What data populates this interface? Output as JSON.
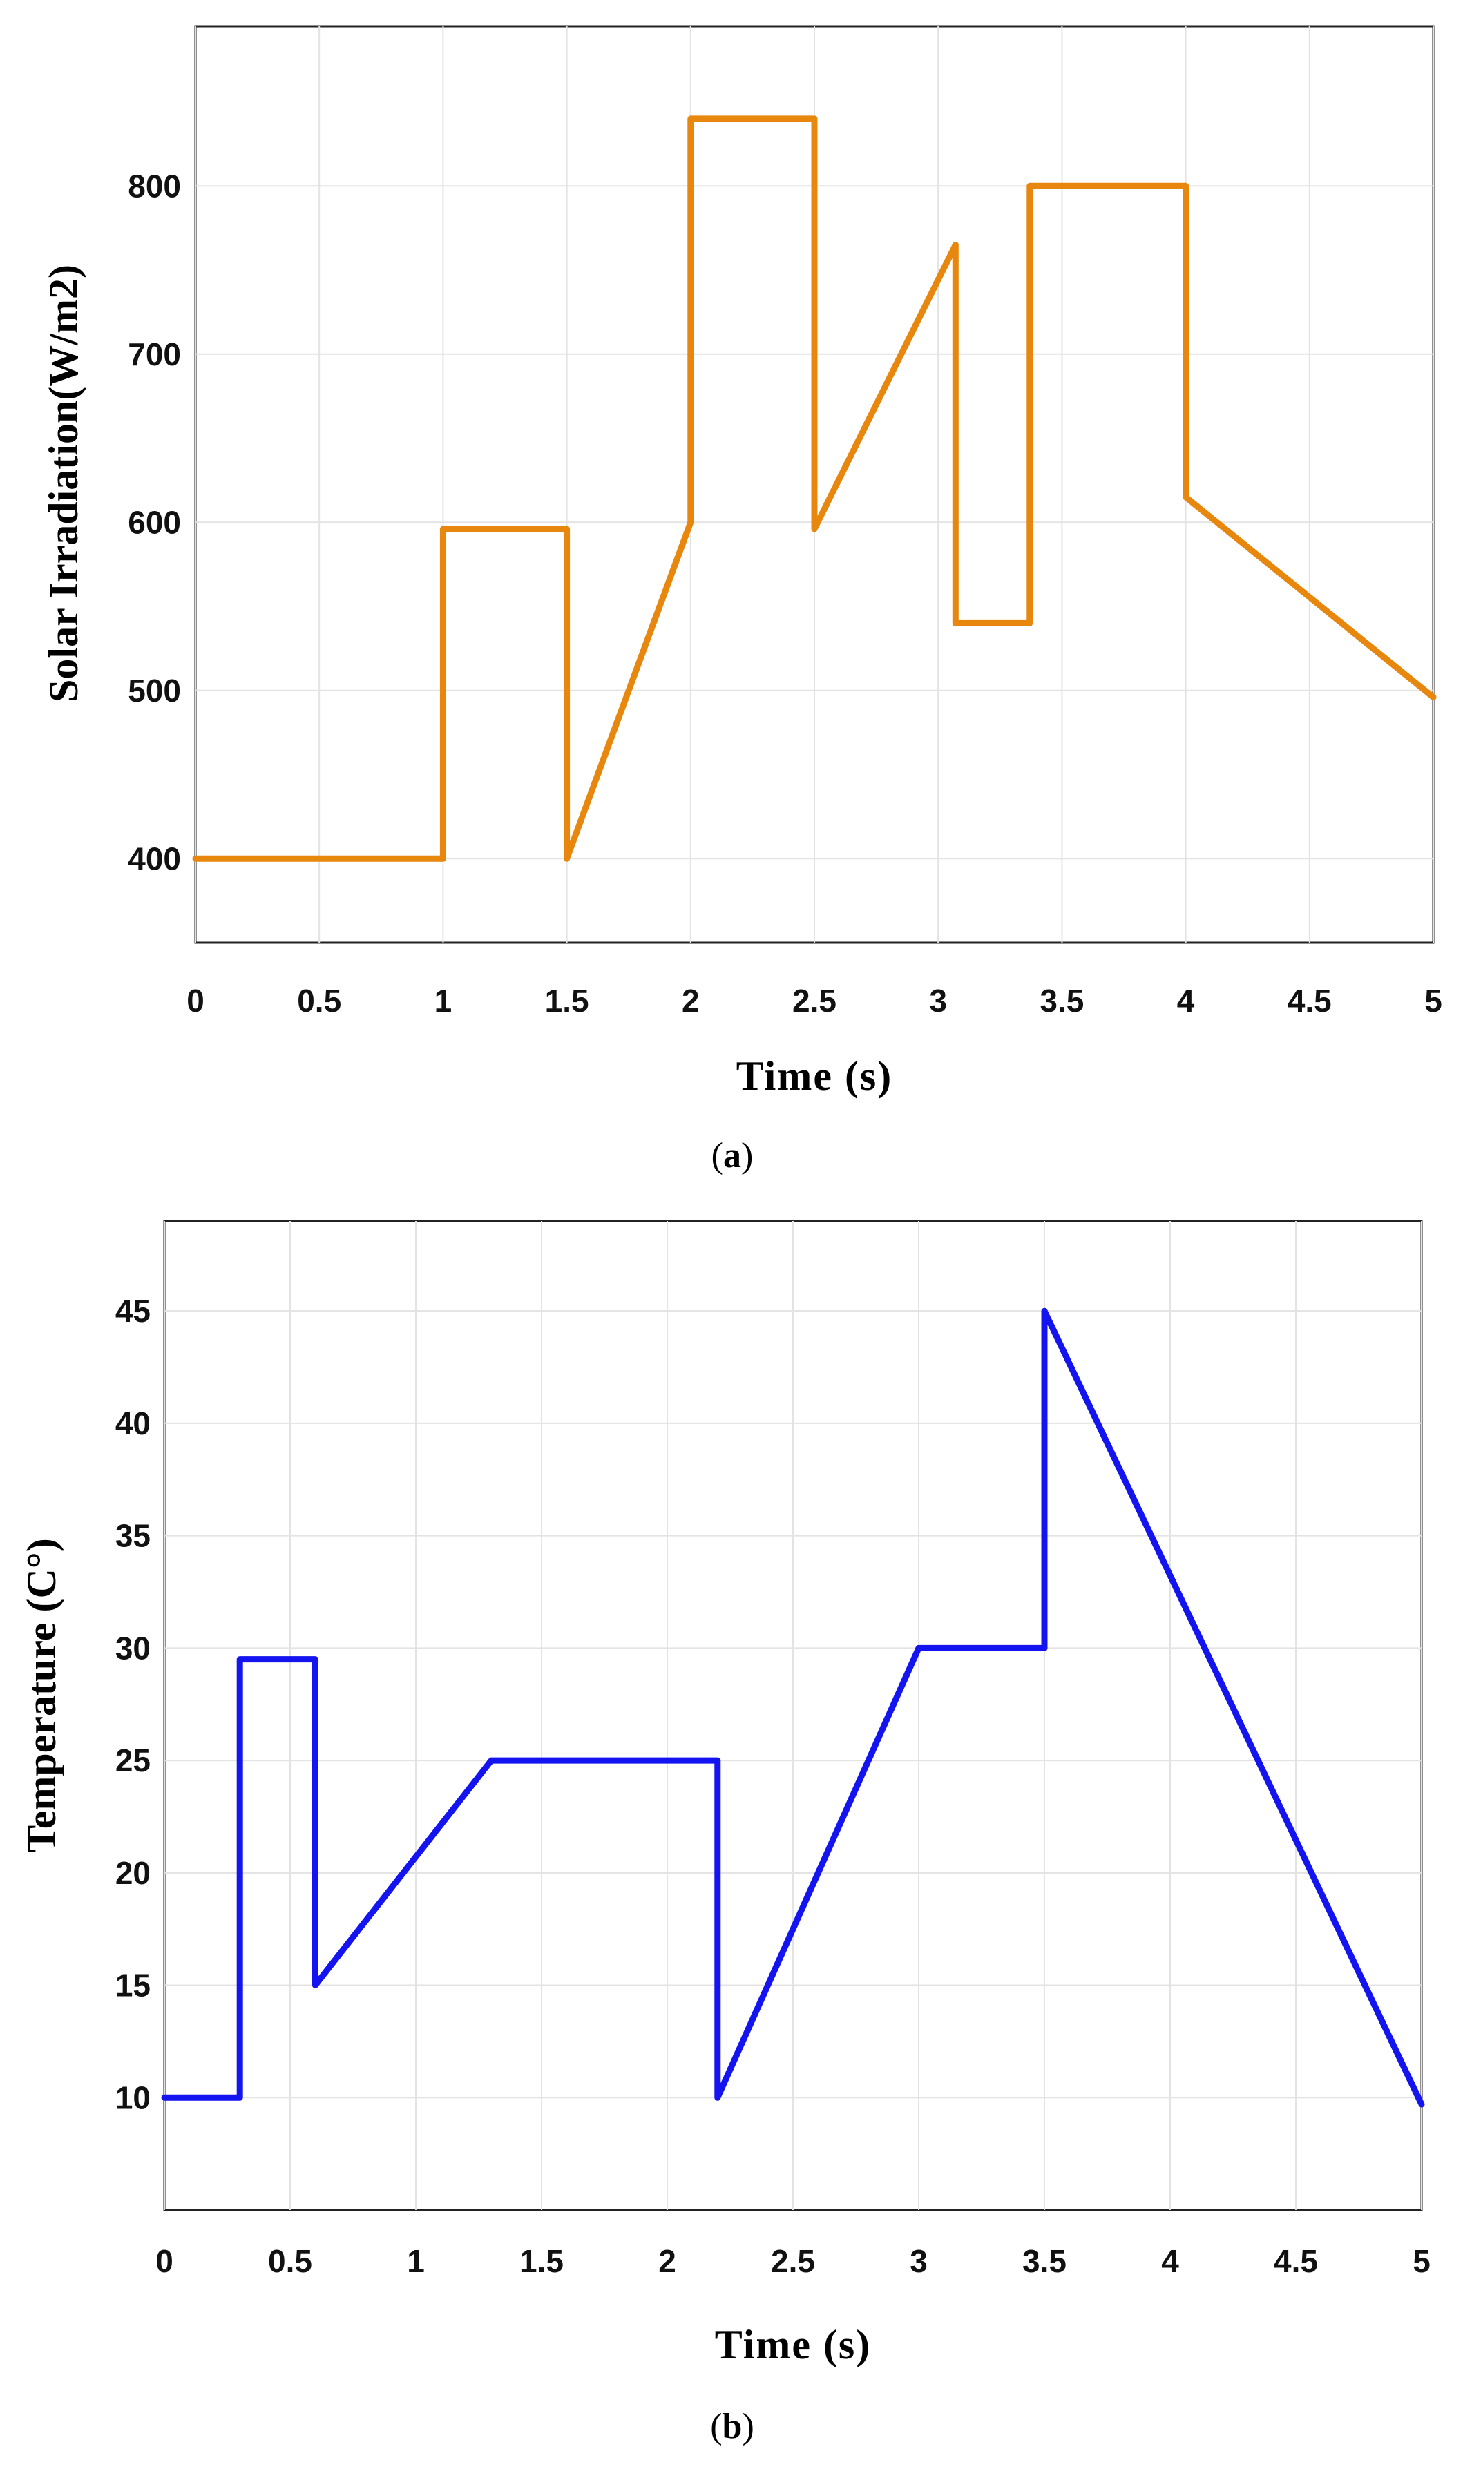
{
  "chart_data": [
    {
      "type": "line",
      "xlabel": "Time (s)",
      "ylabel": "Solar Irradiation(W/m2)",
      "caption": {
        "open": "(",
        "letter": "a",
        "close": ")"
      },
      "xlim": [
        0,
        5
      ],
      "ylim": [
        350,
        895
      ],
      "xticks": [
        0,
        0.5,
        1,
        1.5,
        2,
        2.5,
        3,
        3.5,
        4,
        4.5,
        5
      ],
      "xtick_labels": [
        "0",
        "0.5",
        "1",
        "1.5",
        "2",
        "2.5",
        "3",
        "3.5",
        "4",
        "4.5",
        "5"
      ],
      "yticks": [
        400,
        500,
        600,
        700,
        800
      ],
      "ytick_labels": [
        "400",
        "500",
        "600",
        "700",
        "800"
      ],
      "grid": true,
      "series": [
        {
          "color": "#e8870e",
          "x": [
            0,
            1,
            1,
            1.5,
            1.5,
            2,
            2,
            2.5,
            2.5,
            3.07,
            3.07,
            3.37,
            3.37,
            4,
            4,
            5
          ],
          "y": [
            400,
            400,
            596,
            596,
            400,
            600,
            840,
            840,
            596,
            765,
            540,
            540,
            800,
            800,
            615,
            496
          ]
        }
      ]
    },
    {
      "type": "line",
      "xlabel": "Time (s)",
      "ylabel": "Temperature (C°)",
      "caption": {
        "open": "(",
        "letter": "b",
        "close": ")"
      },
      "xlim": [
        0,
        5
      ],
      "ylim": [
        5,
        49
      ],
      "xticks": [
        0,
        0.5,
        1,
        1.5,
        2,
        2.5,
        3,
        3.5,
        4,
        4.5,
        5
      ],
      "xtick_labels": [
        "0",
        "0.5",
        "1",
        "1.5",
        "2",
        "2.5",
        "3",
        "3.5",
        "4",
        "4.5",
        "5"
      ],
      "yticks": [
        10,
        15,
        20,
        25,
        30,
        35,
        40,
        45
      ],
      "ytick_labels": [
        "10",
        "15",
        "20",
        "25",
        "30",
        "35",
        "40",
        "45"
      ],
      "grid": true,
      "series": [
        {
          "color": "#1414f0",
          "x": [
            0,
            0.3,
            0.3,
            0.6,
            0.6,
            1.3,
            2.2,
            2.2,
            3.0,
            3.5,
            3.5,
            5
          ],
          "y": [
            10,
            10,
            29.5,
            29.5,
            15,
            25,
            25,
            10,
            30,
            30,
            45,
            9.7
          ]
        }
      ]
    }
  ]
}
